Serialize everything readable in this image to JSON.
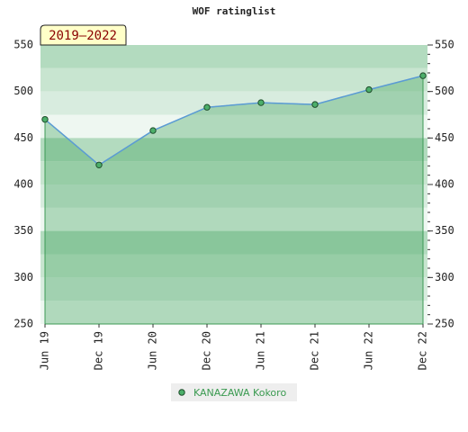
{
  "chart_data": {
    "type": "line",
    "title": "WOF ratinglist",
    "annotation": "2019–2022",
    "categories": [
      "Jun 19",
      "Dec 19",
      "Jun 20",
      "Dec 20",
      "Jun 21",
      "Dec 21",
      "Jun 22",
      "Dec 22"
    ],
    "series": [
      {
        "name": "KANAZAWA Kokoro",
        "color": "#5b9bd5",
        "marker_color": "#4caf6a",
        "values": [
          470,
          421,
          458,
          483,
          488,
          486,
          502,
          517
        ]
      }
    ],
    "ylim": [
      250,
      550
    ],
    "yticks": [
      250,
      300,
      350,
      400,
      450,
      500,
      550
    ],
    "grid": true
  }
}
